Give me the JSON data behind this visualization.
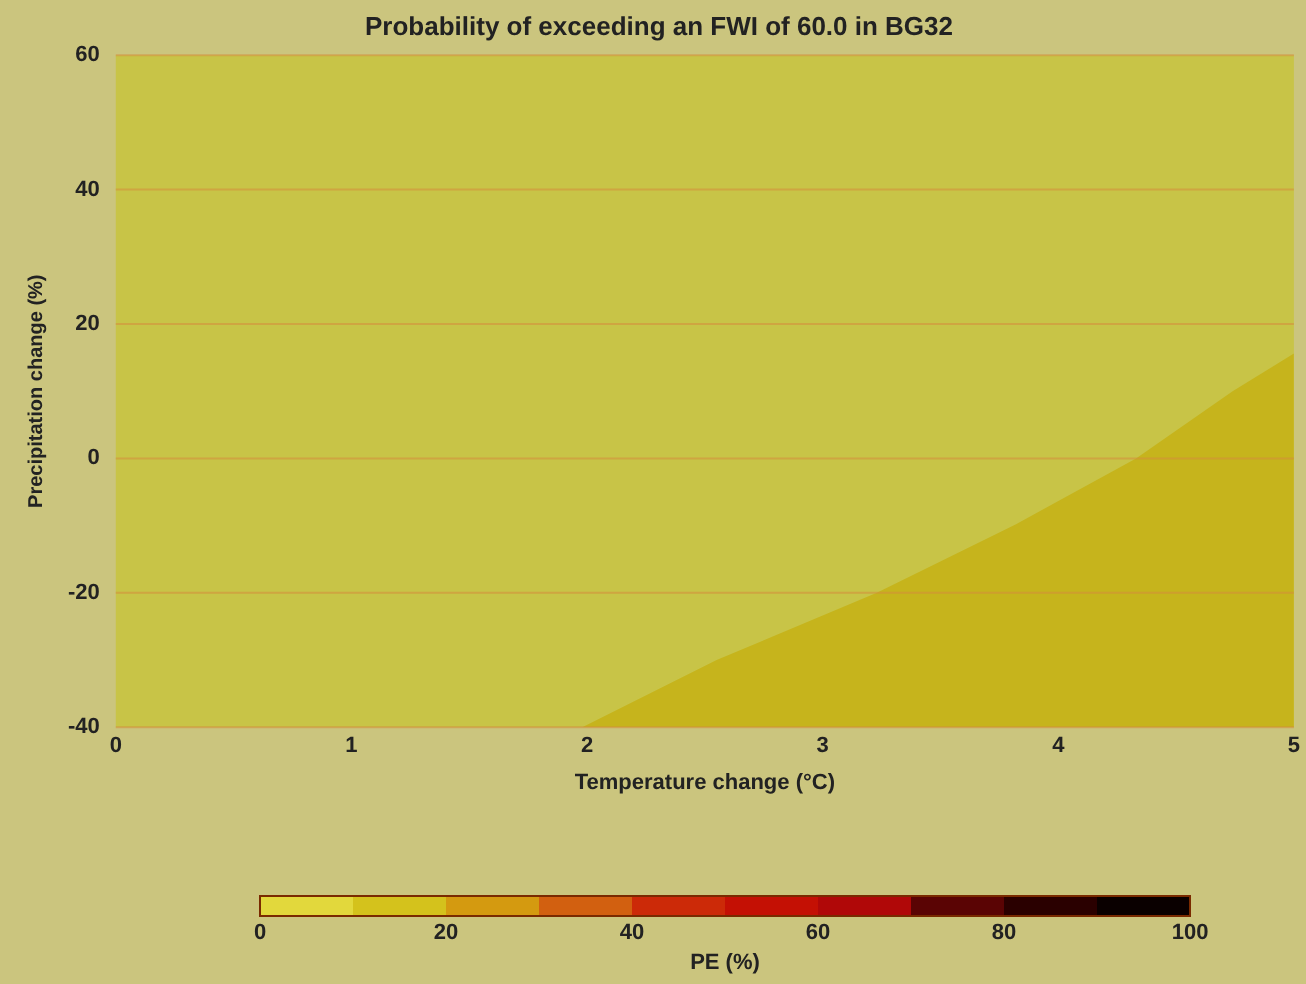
{
  "chart_data": {
    "type": "area",
    "title": "Probability of exceeding an FWI of 60.0 in BG32",
    "xlabel": "Temperature change (°C)",
    "ylabel": "Precipitation change (%)",
    "clabel": "PE (%)",
    "series": [
      {
        "color": "#c6b41c",
        "x": [
          1.98,
          2.55,
          3.23,
          3.81,
          4.33,
          4.74,
          5,
          5
        ],
        "values": [
          -40,
          -30,
          -20,
          -10,
          0,
          10,
          15.6,
          -40
        ]
      }
    ],
    "xlim": [
      0,
      5
    ],
    "xticks": [
      0,
      1,
      2,
      3,
      4,
      5
    ],
    "ylim": [
      -40,
      60
    ],
    "yticks": [
      -40,
      -20,
      0,
      20,
      40,
      60
    ],
    "clim": [
      0,
      100
    ],
    "cticks": [
      0,
      20,
      40,
      60,
      80,
      100
    ],
    "grid": "y",
    "legend": false
  }
}
